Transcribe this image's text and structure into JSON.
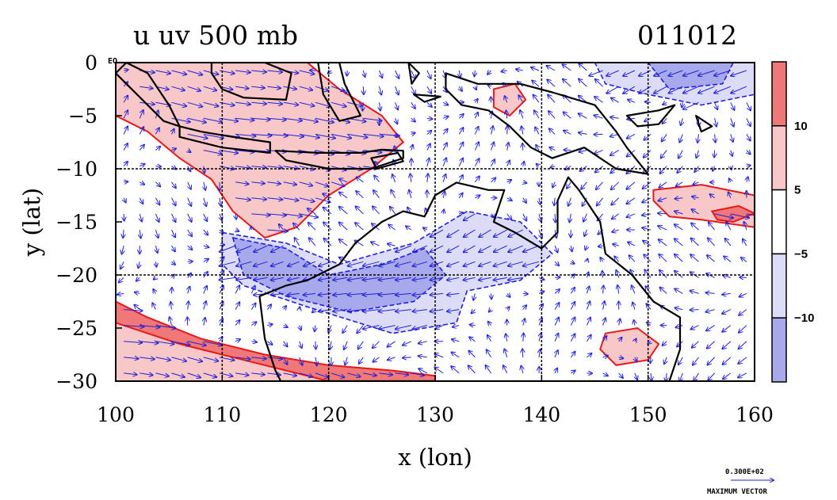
{
  "chart_data": {
    "type": "heatmap",
    "title": "u uv 500 mb",
    "date": "011012",
    "xlabel": "x (lon)",
    "ylabel": "y (lat)",
    "xlim": [
      100,
      160
    ],
    "ylim": [
      -30,
      0
    ],
    "x_ticks": [
      "100",
      "110",
      "120",
      "130",
      "140",
      "150",
      "160"
    ],
    "y_ticks": [
      "0",
      "−5",
      "−10",
      "−15",
      "−20",
      "−25",
      "−30"
    ],
    "eq_label": "EQ",
    "grid": true,
    "colorbar": {
      "ticks": [
        "10",
        "5",
        "−5",
        "−10"
      ],
      "bins": [
        {
          "range": [
            10,
            20
          ],
          "color": "#f07878"
        },
        {
          "range": [
            5,
            10
          ],
          "color": "#f8c8c8"
        },
        {
          "range": [
            -5,
            5
          ],
          "color": "#ffffff"
        },
        {
          "range": [
            -10,
            -5
          ],
          "color": "#dcdcf8"
        },
        {
          "range": [
            -20,
            -10
          ],
          "color": "#a8a8ec"
        }
      ]
    },
    "regions": [
      {
        "level": "strong_pos",
        "color": "#f07878",
        "points": [
          [
            101,
            0
          ],
          [
            118,
            0
          ],
          [
            120,
            -2
          ],
          [
            124,
            -5
          ],
          [
            127,
            -7.5
          ],
          [
            124,
            -10
          ],
          [
            120,
            -12
          ],
          [
            117,
            -15
          ],
          [
            114,
            -16.3
          ],
          [
            111,
            -14
          ],
          [
            110,
            -10
          ],
          [
            106,
            -6
          ],
          [
            102,
            -4
          ],
          [
            101,
            -2
          ]
        ]
      },
      {
        "level": "pos",
        "color": "#f8c8c8",
        "points": [
          [
            100,
            -5
          ],
          [
            103,
            -6.5
          ],
          [
            106,
            -9
          ],
          [
            109,
            -11
          ],
          [
            111,
            -14
          ],
          [
            114,
            -16.5
          ],
          [
            117,
            -15.5
          ],
          [
            120,
            -12.5
          ],
          [
            124,
            -10
          ],
          [
            127,
            -7.5
          ],
          [
            125,
            -5
          ],
          [
            121,
            -2.5
          ],
          [
            118,
            0
          ],
          [
            100,
            0
          ]
        ]
      },
      {
        "level": "strong_pos",
        "color": "#f07878",
        "points": [
          [
            100,
            -22.5
          ],
          [
            103,
            -24
          ],
          [
            108,
            -26
          ],
          [
            114,
            -27.5
          ],
          [
            120,
            -28.5
          ],
          [
            126,
            -29
          ],
          [
            130,
            -29.5
          ],
          [
            130,
            -30
          ],
          [
            100,
            -30
          ]
        ]
      },
      {
        "level": "pos",
        "color": "#f8c8c8",
        "points": [
          [
            100,
            -24.5
          ],
          [
            106,
            -26.5
          ],
          [
            112,
            -28
          ],
          [
            118,
            -29.5
          ],
          [
            120,
            -30
          ],
          [
            100,
            -30
          ]
        ]
      },
      {
        "level": "pos",
        "color": "#f8c8c8",
        "points": [
          [
            146,
            -25.5
          ],
          [
            149,
            -25
          ],
          [
            151,
            -26.5
          ],
          [
            150,
            -28
          ],
          [
            147,
            -28.5
          ],
          [
            145.5,
            -27
          ]
        ]
      },
      {
        "level": "pos",
        "color": "#f8c8c8",
        "points": [
          [
            150.5,
            -12
          ],
          [
            155,
            -11.5
          ],
          [
            160,
            -12.5
          ],
          [
            160,
            -15.5
          ],
          [
            155,
            -14.8
          ],
          [
            152,
            -14.5
          ],
          [
            150.5,
            -13
          ]
        ]
      },
      {
        "level": "strong_pos",
        "color": "#f07878",
        "points": [
          [
            156,
            -14
          ],
          [
            158.5,
            -13.5
          ],
          [
            160,
            -14.2
          ],
          [
            158,
            -15
          ],
          [
            156.5,
            -14.8
          ]
        ]
      },
      {
        "level": "pos",
        "color": "#f8c8c8",
        "points": [
          [
            135.5,
            -2.5
          ],
          [
            137.5,
            -2
          ],
          [
            138.5,
            -3.5
          ],
          [
            137,
            -5
          ],
          [
            135.5,
            -4.2
          ]
        ]
      },
      {
        "level": "neg",
        "color": "#dcdcf8",
        "points": [
          [
            145,
            0
          ],
          [
            160,
            0
          ],
          [
            160,
            -3
          ],
          [
            155,
            -4
          ],
          [
            150,
            -3
          ],
          [
            146,
            -2
          ]
        ]
      },
      {
        "level": "neg",
        "color": "#dcdcf8",
        "points": [
          [
            110,
            -16
          ],
          [
            116,
            -17
          ],
          [
            121,
            -19
          ],
          [
            128,
            -17
          ],
          [
            133,
            -14
          ],
          [
            138,
            -15
          ],
          [
            141,
            -18
          ],
          [
            138,
            -20.5
          ],
          [
            133,
            -21.5
          ],
          [
            132,
            -24.5
          ],
          [
            126,
            -25.5
          ],
          [
            118,
            -23
          ],
          [
            112,
            -21
          ],
          [
            110,
            -19
          ]
        ]
      },
      {
        "level": "strong_neg",
        "color": "#a8a8ec",
        "points": [
          [
            111,
            -16.5
          ],
          [
            116,
            -17.5
          ],
          [
            120,
            -20
          ],
          [
            125,
            -19
          ],
          [
            129,
            -17.5
          ],
          [
            131,
            -20
          ],
          [
            128,
            -22.5
          ],
          [
            122,
            -23.5
          ],
          [
            116,
            -22
          ],
          [
            112,
            -20
          ]
        ]
      },
      {
        "level": "strong_neg",
        "color": "#a8a8ec",
        "points": [
          [
            150,
            0
          ],
          [
            158,
            0
          ],
          [
            157,
            -2
          ],
          [
            152,
            -2.5
          ]
        ]
      }
    ],
    "coastlines": [
      {
        "name": "australia",
        "points": [
          [
            113.5,
            -22
          ],
          [
            114,
            -26
          ],
          [
            115,
            -29
          ],
          [
            115.5,
            -30
          ],
          [
            152,
            -30
          ],
          [
            153,
            -27
          ],
          [
            153,
            -24
          ],
          [
            150.5,
            -22.5
          ],
          [
            148.5,
            -20
          ],
          [
            146,
            -18
          ],
          [
            145.5,
            -15
          ],
          [
            143.5,
            -12
          ],
          [
            142.5,
            -10.8
          ],
          [
            141.5,
            -13
          ],
          [
            141.5,
            -16
          ],
          [
            140,
            -17.5
          ],
          [
            137.5,
            -16
          ],
          [
            135.5,
            -15
          ],
          [
            136.5,
            -12
          ],
          [
            135,
            -12
          ],
          [
            132,
            -11.3
          ],
          [
            130,
            -12.5
          ],
          [
            129,
            -14.5
          ],
          [
            127,
            -14
          ],
          [
            125,
            -15
          ],
          [
            122.5,
            -17
          ],
          [
            121,
            -19
          ],
          [
            118,
            -20.5
          ],
          [
            116,
            -21
          ],
          [
            113.5,
            -22
          ]
        ]
      },
      {
        "name": "sumatra",
        "points": [
          [
            101,
            0
          ],
          [
            103,
            -1
          ],
          [
            105,
            -4
          ],
          [
            106,
            -6
          ],
          [
            104.5,
            -5.5
          ],
          [
            102,
            -3
          ],
          [
            100,
            -1
          ]
        ]
      },
      {
        "name": "borneo",
        "points": [
          [
            109,
            0
          ],
          [
            114,
            0
          ],
          [
            116.5,
            -1
          ],
          [
            116,
            -3.5
          ],
          [
            112,
            -3.3
          ],
          [
            110,
            -2.5
          ],
          [
            109,
            -1
          ]
        ]
      },
      {
        "name": "java",
        "points": [
          [
            106,
            -6
          ],
          [
            108,
            -6.5
          ],
          [
            111,
            -7
          ],
          [
            114.5,
            -7.5
          ],
          [
            114.5,
            -8.5
          ],
          [
            110,
            -8
          ],
          [
            106,
            -7
          ]
        ]
      },
      {
        "name": "lesser_sunda",
        "points": [
          [
            115,
            -8.3
          ],
          [
            119,
            -8.5
          ],
          [
            123,
            -8.5
          ],
          [
            125,
            -8.2
          ],
          [
            127,
            -8.3
          ],
          [
            127,
            -9
          ],
          [
            124,
            -10
          ],
          [
            120,
            -10
          ],
          [
            116,
            -9.2
          ]
        ]
      },
      {
        "name": "sulawesi",
        "points": [
          [
            119,
            0
          ],
          [
            121,
            0
          ],
          [
            121.5,
            -2
          ],
          [
            123,
            -5
          ],
          [
            121,
            -5.5
          ],
          [
            119.5,
            -3
          ]
        ]
      },
      {
        "name": "new_guinea",
        "points": [
          [
            131,
            -1
          ],
          [
            134,
            -2
          ],
          [
            138,
            -2
          ],
          [
            141,
            -2.8
          ],
          [
            145,
            -4
          ],
          [
            147,
            -6.5
          ],
          [
            148,
            -8
          ],
          [
            150,
            -10.5
          ],
          [
            147,
            -10
          ],
          [
            144,
            -8
          ],
          [
            141,
            -9
          ],
          [
            139,
            -8
          ],
          [
            137,
            -6
          ],
          [
            135,
            -4.5
          ],
          [
            132.5,
            -4
          ],
          [
            131,
            -2.5
          ]
        ]
      },
      {
        "name": "new_britain",
        "points": [
          [
            148,
            -5
          ],
          [
            151,
            -4.5
          ],
          [
            152.5,
            -4
          ],
          [
            151,
            -5.8
          ],
          [
            149,
            -6
          ]
        ]
      },
      {
        "name": "solomon",
        "points": [
          [
            154.5,
            -5
          ],
          [
            156,
            -6
          ],
          [
            155,
            -6.5
          ]
        ]
      },
      {
        "name": "halmahera",
        "points": [
          [
            127.5,
            0
          ],
          [
            128.5,
            -1
          ],
          [
            127.8,
            -2
          ]
        ]
      },
      {
        "name": "seram",
        "points": [
          [
            128,
            -3
          ],
          [
            130.5,
            -3.2
          ],
          [
            129,
            -3.7
          ]
        ]
      },
      {
        "name": "timor",
        "points": [
          [
            124,
            -9
          ],
          [
            126.5,
            -8.5
          ],
          [
            127,
            -9.3
          ],
          [
            124.5,
            -10
          ]
        ]
      }
    ],
    "vector_field": {
      "dx": 1.5,
      "dy": 1.5,
      "reference": "0.300E+02",
      "reference_label": "MAXIMUM VECTOR"
    }
  }
}
